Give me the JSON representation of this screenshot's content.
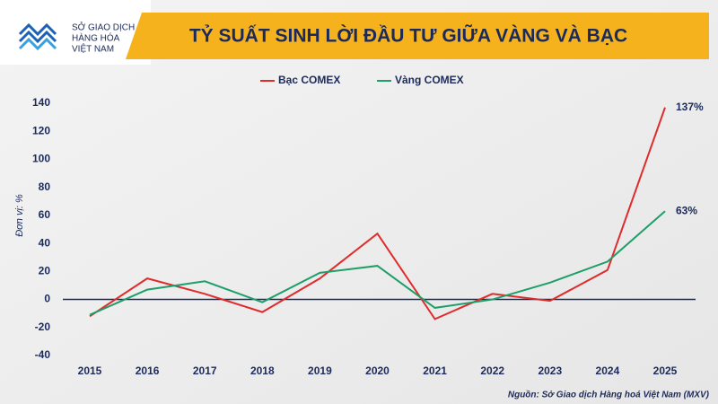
{
  "logo_lines": [
    "SỞ GIAO DỊCH",
    "HÀNG HÓA",
    "VIỆT NAM"
  ],
  "chart_data": {
    "type": "line",
    "title": "TỶ SUẤT SINH LỜI ĐẦU TƯ GIỮA VÀNG VÀ BẠC",
    "y_label": "Đơn vị: %",
    "source": "Nguồn: Sở Giao dịch Hàng hoá Việt Nam (MXV)",
    "categories": [
      "2015",
      "2016",
      "2017",
      "2018",
      "2019",
      "2020",
      "2021",
      "2022",
      "2023",
      "2024",
      "2025"
    ],
    "series": [
      {
        "name": "Bạc COMEX",
        "color": "#e02b2b",
        "values": [
          -12,
          15,
          4,
          -9,
          15,
          47,
          -14,
          4,
          -1,
          21,
          137
        ],
        "value_labels": [
          null,
          null,
          null,
          null,
          null,
          null,
          null,
          null,
          null,
          null,
          "137%"
        ]
      },
      {
        "name": "Vàng COMEX",
        "color": "#1e9e68",
        "values": [
          -11,
          7,
          13,
          -2,
          19,
          24,
          -6,
          0,
          12,
          27,
          63
        ],
        "value_labels": [
          null,
          null,
          null,
          null,
          null,
          null,
          null,
          null,
          null,
          null,
          "63%"
        ]
      }
    ],
    "ylim": [
      -40,
      140
    ],
    "yticks": [
      -40,
      -20,
      0,
      20,
      40,
      60,
      80,
      100,
      120,
      140
    ],
    "legend": "top",
    "zero_line_color": "#1b2a5a"
  }
}
